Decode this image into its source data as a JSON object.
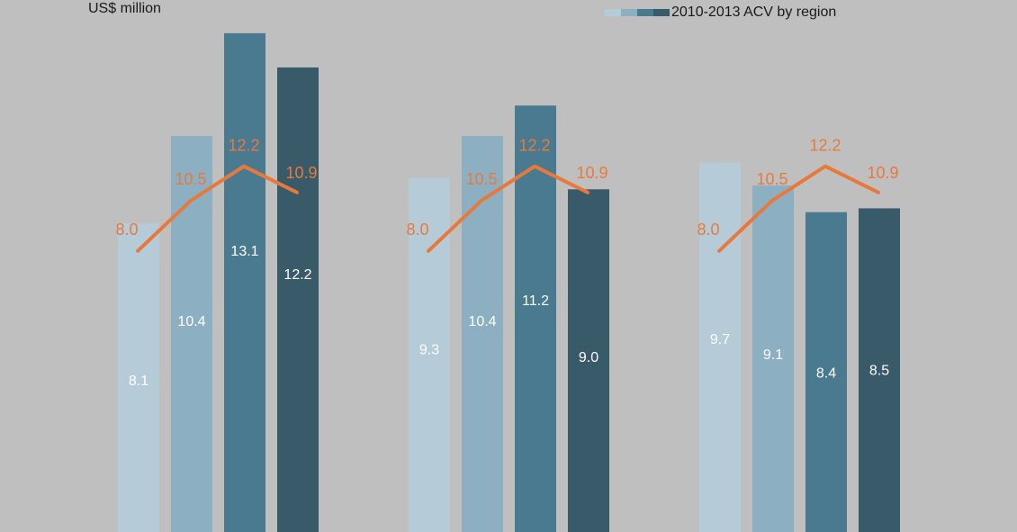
{
  "chart_data": {
    "type": "bar",
    "unit_label": "US$ million",
    "legend": {
      "label": "2010-2013 ACV by region",
      "position": "top-right"
    },
    "groups": [
      {
        "bars": [
          8.1,
          10.4,
          13.1,
          12.2
        ],
        "line": [
          8.0,
          10.5,
          12.2,
          10.9
        ]
      },
      {
        "bars": [
          9.3,
          10.4,
          11.2,
          9.0
        ],
        "line": [
          8.0,
          10.5,
          12.2,
          10.9
        ]
      },
      {
        "bars": [
          9.7,
          9.1,
          8.4,
          8.5
        ],
        "line": [
          8.0,
          10.5,
          12.2,
          10.9
        ]
      }
    ],
    "colors": {
      "bars": [
        "#b5ccd8",
        "#8cb0c2",
        "#4a7a90",
        "#385a69"
      ],
      "line": "#e8793d",
      "bar_label": "#ffffff"
    }
  }
}
